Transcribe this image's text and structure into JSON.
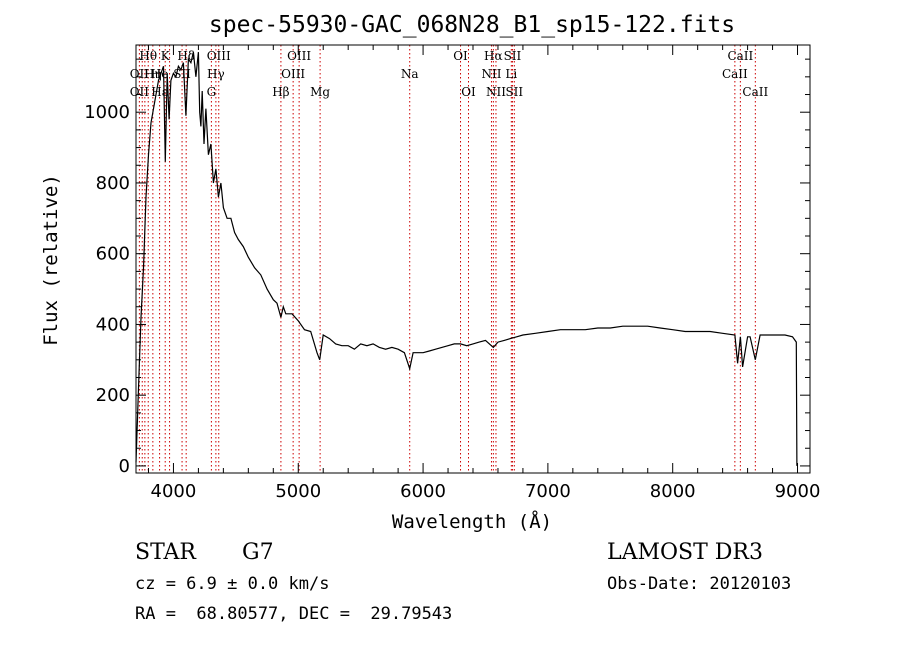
{
  "chart_data": {
    "type": "line",
    "title": "spec-55930-GAC_068N28_B1_sp15-122.fits",
    "xlabel": "Wavelength (Å)",
    "ylabel": "Flux (relative)",
    "xlim": [
      3700,
      9100
    ],
    "ylim": [
      -20,
      1190
    ],
    "x_ticks": [
      4000,
      5000,
      6000,
      7000,
      8000,
      9000
    ],
    "y_ticks": [
      0,
      200,
      400,
      600,
      800,
      1000
    ],
    "grid": false,
    "series": [
      {
        "x": [
          3700,
          3720,
          3740,
          3760,
          3780,
          3800,
          3820,
          3840,
          3860,
          3880,
          3900,
          3920,
          3935,
          3950,
          3965,
          3980,
          4000,
          4020,
          4040,
          4060,
          4080,
          4100,
          4120,
          4140,
          4160,
          4180,
          4200,
          4210,
          4220,
          4230,
          4245,
          4260,
          4280,
          4300,
          4320,
          4340,
          4360,
          4380,
          4400,
          4430,
          4460,
          4490,
          4520,
          4560,
          4600,
          4650,
          4700,
          4750,
          4800,
          4830,
          4861,
          4880,
          4900,
          4950,
          5000,
          5050,
          5100,
          5150,
          5172,
          5200,
          5250,
          5300,
          5350,
          5400,
          5450,
          5500,
          5550,
          5600,
          5650,
          5700,
          5750,
          5800,
          5850,
          5893,
          5920,
          5950,
          6000,
          6050,
          6100,
          6150,
          6200,
          6250,
          6300,
          6350,
          6400,
          6450,
          6500,
          6563,
          6600,
          6650,
          6700,
          6750,
          6800,
          6900,
          7000,
          7100,
          7200,
          7300,
          7400,
          7500,
          7600,
          7700,
          7800,
          7900,
          8000,
          8100,
          8200,
          8300,
          8400,
          8498,
          8520,
          8542,
          8560,
          8600,
          8620,
          8662,
          8700,
          8800,
          8900,
          8960,
          8990,
          8995
        ],
        "y": [
          10,
          220,
          420,
          560,
          760,
          880,
          970,
          1010,
          1050,
          1090,
          1110,
          1130,
          860,
          1110,
          980,
          1090,
          1110,
          1100,
          1130,
          1120,
          1140,
          990,
          1150,
          1140,
          1170,
          1100,
          1170,
          1000,
          960,
          1060,
          910,
          1010,
          880,
          910,
          800,
          840,
          760,
          800,
          730,
          700,
          700,
          660,
          640,
          620,
          590,
          560,
          540,
          500,
          470,
          460,
          420,
          450,
          430,
          430,
          410,
          385,
          380,
          320,
          300,
          370,
          360,
          345,
          340,
          340,
          330,
          345,
          340,
          345,
          335,
          330,
          335,
          330,
          320,
          275,
          320,
          320,
          320,
          325,
          330,
          335,
          340,
          345,
          345,
          340,
          345,
          350,
          355,
          335,
          350,
          355,
          360,
          365,
          370,
          375,
          380,
          385,
          385,
          385,
          390,
          390,
          395,
          395,
          395,
          390,
          385,
          380,
          380,
          380,
          375,
          370,
          290,
          365,
          280,
          365,
          365,
          300,
          370,
          370,
          370,
          365,
          350,
          0
        ]
      }
    ],
    "line_labels": [
      {
        "text": "Hθ",
        "x": 3798,
        "row": 0,
        "color": "#ff0000"
      },
      {
        "text": "OII",
        "x": 3727,
        "row": 1,
        "color": "#ff0000"
      },
      {
        "text": "OII",
        "x": 3727,
        "row": 2,
        "color": "#ff0000"
      },
      {
        "text": "Hη",
        "x": 3835,
        "row": 1,
        "color": "#ff0000"
      },
      {
        "text": "Hε",
        "x": 3889,
        "row": 2,
        "color": "#ff0000"
      },
      {
        "text": "He",
        "x": 3889,
        "row": 1,
        "color": "#ff0000"
      },
      {
        "text": "K",
        "x": 3934,
        "row": 0,
        "color": "#ff0000"
      },
      {
        "text": "SII",
        "x": 4069,
        "row": 1,
        "color": "#ff0000"
      },
      {
        "text": "Hδ",
        "x": 4102,
        "row": 0,
        "color": "#ff0000"
      },
      {
        "text": "OIII",
        "x": 4363,
        "row": 0,
        "color": "#ff0000"
      },
      {
        "text": "Hγ",
        "x": 4340,
        "row": 1,
        "color": "#ff0000"
      },
      {
        "text": "G",
        "x": 4304,
        "row": 2,
        "color": "#ff0000"
      },
      {
        "text": "Hβ",
        "x": 4861,
        "row": 2,
        "color": "#ff0000"
      },
      {
        "text": "OIII",
        "x": 5007,
        "row": 0,
        "color": "#ff0000"
      },
      {
        "text": "OIII",
        "x": 4959,
        "row": 1,
        "color": "#ff0000"
      },
      {
        "text": "Mg",
        "x": 5175,
        "row": 2,
        "color": "#ff0000"
      },
      {
        "text": "Na",
        "x": 5893,
        "row": 1,
        "color": "#ff0000"
      },
      {
        "text": "OI",
        "x": 6300,
        "row": 0,
        "color": "#ff0000"
      },
      {
        "text": "OI",
        "x": 6364,
        "row": 2,
        "color": "#ff0000"
      },
      {
        "text": "Hα",
        "x": 6563,
        "row": 0,
        "color": "#ff0000"
      },
      {
        "text": "SII",
        "x": 6716,
        "row": 0,
        "color": "#ff0000"
      },
      {
        "text": "NII",
        "x": 6548,
        "row": 1,
        "color": "#ff0000"
      },
      {
        "text": "Li",
        "x": 6707,
        "row": 1,
        "color": "#ff0000"
      },
      {
        "text": "NII",
        "x": 6584,
        "row": 2,
        "color": "#ff0000"
      },
      {
        "text": "SII",
        "x": 6731,
        "row": 2,
        "color": "#ff0000"
      },
      {
        "text": "CaII",
        "x": 8542,
        "row": 0,
        "color": "#ff0000"
      },
      {
        "text": "CaII",
        "x": 8498,
        "row": 1,
        "color": "#ff0000"
      },
      {
        "text": "CaII",
        "x": 8662,
        "row": 2,
        "color": "#ff0000"
      }
    ],
    "line_markers_x": [
      3727,
      3750,
      3771,
      3798,
      3835,
      3889,
      3934,
      3969,
      4069,
      4102,
      4304,
      4340,
      4363,
      4861,
      4959,
      5007,
      5175,
      5893,
      6300,
      6364,
      6548,
      6563,
      6584,
      6707,
      6716,
      6731,
      8498,
      8542,
      8662
    ],
    "colors": {
      "spectrum": "#000000",
      "line_marker": "#cc0000",
      "axes": "#000000"
    }
  },
  "info": {
    "object_type": "STAR",
    "subclass": "G7",
    "survey": "LAMOST DR3",
    "cz": "cz = 6.9 ± 0.0 km/s",
    "obs_date": "Obs-Date: 20120103",
    "coords": "RA =  68.80577, DEC =  29.79543"
  }
}
